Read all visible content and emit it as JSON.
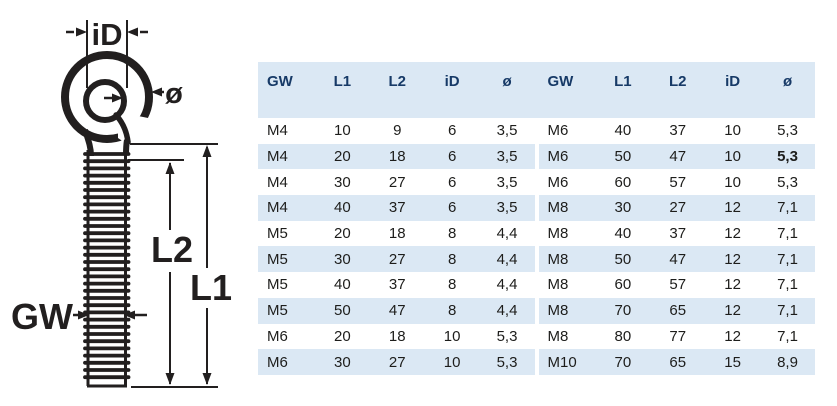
{
  "diagram": {
    "labels": {
      "inner_diameter": "iD",
      "wire_diameter": "ø",
      "thread_length": "L2",
      "total_length": "L1",
      "thread_size": "GW"
    }
  },
  "table": {
    "columns": [
      "GW",
      "L1",
      "L2",
      "iD",
      "ø"
    ],
    "groups": [
      {
        "rows": [
          [
            "M4",
            "10",
            "9",
            "6",
            "3,5"
          ],
          [
            "M4",
            "20",
            "18",
            "6",
            "3,5"
          ],
          [
            "M4",
            "30",
            "27",
            "6",
            "3,5"
          ],
          [
            "M4",
            "40",
            "37",
            "6",
            "3,5"
          ],
          [
            "M5",
            "20",
            "18",
            "8",
            "4,4"
          ],
          [
            "M5",
            "30",
            "27",
            "8",
            "4,4"
          ],
          [
            "M5",
            "40",
            "37",
            "8",
            "4,4"
          ],
          [
            "M5",
            "50",
            "47",
            "8",
            "4,4"
          ],
          [
            "M6",
            "20",
            "18",
            "10",
            "5,3"
          ],
          [
            "M6",
            "30",
            "27",
            "10",
            "5,3"
          ]
        ]
      },
      {
        "rows": [
          [
            "M6",
            "40",
            "37",
            "10",
            "5,3"
          ],
          [
            "M6",
            "50",
            "47",
            "10",
            "5,3"
          ],
          [
            "M6",
            "60",
            "57",
            "10",
            "5,3"
          ],
          [
            "M8",
            "30",
            "27",
            "12",
            "7,1"
          ],
          [
            "M8",
            "40",
            "37",
            "12",
            "7,1"
          ],
          [
            "M8",
            "50",
            "47",
            "12",
            "7,1"
          ],
          [
            "M8",
            "60",
            "57",
            "12",
            "7,1"
          ],
          [
            "M8",
            "70",
            "65",
            "12",
            "7,1"
          ],
          [
            "M8",
            "80",
            "77",
            "12",
            "7,1"
          ],
          [
            "M10",
            "70",
            "65",
            "15",
            "8,9"
          ]
        ]
      }
    ],
    "bold_cell": {
      "group": 1,
      "row": 1,
      "col": 4
    }
  },
  "colors": {
    "stripe": "#dbe8f4",
    "header_text": "#173a67",
    "data_text": "#1d1d1b",
    "line": "#221f1f"
  }
}
